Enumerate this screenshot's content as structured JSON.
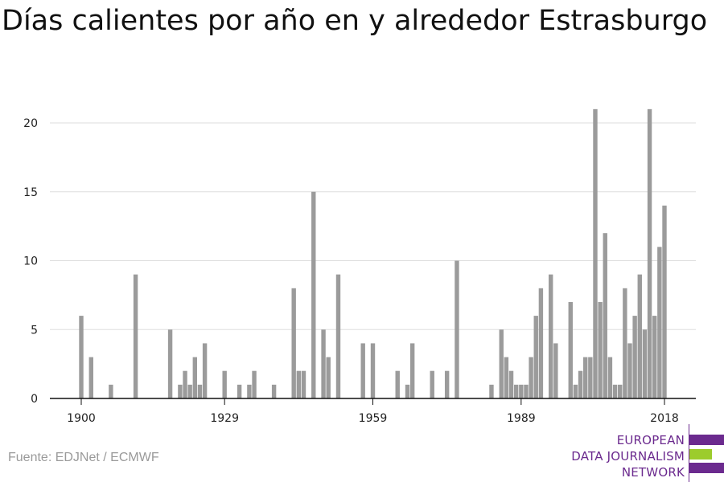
{
  "title": "Días calientes por año en y alrededor Estrasburgo",
  "source": "Fuente: EDJNet / ECMWF",
  "logo": {
    "lines": [
      "EUROPEAN",
      "DATA JOURNALISM",
      "NETWORK"
    ],
    "colors": {
      "purple": "#6b2a8e",
      "green": "#9ccc2c"
    }
  },
  "colors": {
    "bar": "#9b9b9b",
    "grid": "#dddddd",
    "axis": "#111111",
    "tick_text": "#222222"
  },
  "chart_data": {
    "type": "bar",
    "x": [
      1900,
      1902,
      1906,
      1911,
      1918,
      1920,
      1921,
      1922,
      1923,
      1924,
      1925,
      1929,
      1932,
      1934,
      1935,
      1939,
      1943,
      1944,
      1945,
      1947,
      1949,
      1950,
      1952,
      1957,
      1959,
      1964,
      1966,
      1967,
      1971,
      1974,
      1976,
      1983,
      1985,
      1986,
      1987,
      1988,
      1989,
      1990,
      1991,
      1992,
      1993,
      1995,
      1996,
      1999,
      2000,
      2001,
      2002,
      2003,
      2004,
      2005,
      2006,
      2007,
      2008,
      2009,
      2010,
      2011,
      2012,
      2013,
      2014,
      2015,
      2016,
      2017,
      2018
    ],
    "values": [
      6,
      3,
      1,
      9,
      5,
      1,
      2,
      1,
      3,
      1,
      4,
      2,
      1,
      1,
      2,
      1,
      8,
      2,
      2,
      15,
      5,
      3,
      9,
      4,
      4,
      2,
      1,
      4,
      2,
      2,
      10,
      1,
      5,
      3,
      2,
      1,
      1,
      1,
      3,
      6,
      8,
      9,
      4,
      7,
      1,
      2,
      3,
      3,
      21,
      7,
      12,
      3,
      1,
      1,
      8,
      4,
      6,
      9,
      5,
      21,
      6,
      11,
      14
    ],
    "xticks": [
      1900,
      1929,
      1959,
      1989,
      2018
    ],
    "xlim": [
      1900,
      2018
    ],
    "yticks": [
      0,
      5,
      10,
      15,
      20
    ],
    "ylim": [
      0,
      21
    ],
    "grid": true,
    "legend": false
  }
}
